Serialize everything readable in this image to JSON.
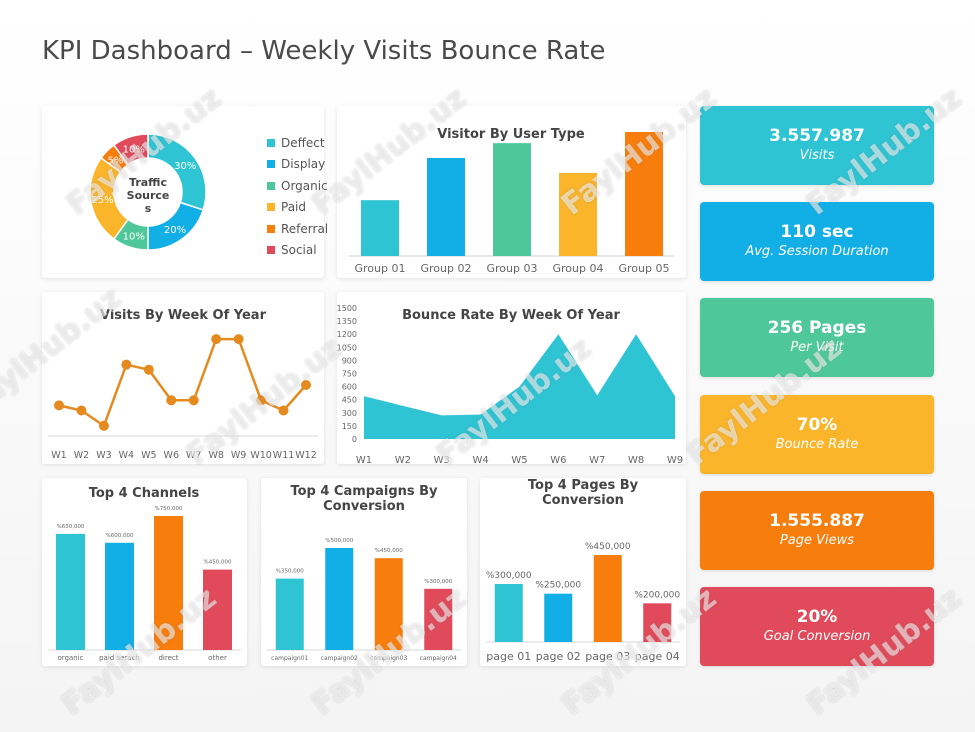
{
  "page": {
    "title": "KPI Dashboard – Weekly Visits Bounce Rate"
  },
  "watermark": "FaylHub.uz",
  "kpis": [
    {
      "value": "3.557.987",
      "label": "Visits",
      "color": "#2ec4d3"
    },
    {
      "value": "110 sec",
      "label": "Avg. Session Duration",
      "color": "#12aee6"
    },
    {
      "value": "256 Pages",
      "label": "Per Visit",
      "color": "#4ec89a"
    },
    {
      "value": "70%",
      "label": "Bounce Rate",
      "color": "#fbb52a"
    },
    {
      "value": "1.555.887",
      "label": "Page Views",
      "color": "#f77d0c"
    },
    {
      "value": "20%",
      "label": "Goal Conversion",
      "color": "#e04a5a"
    }
  ],
  "chart_data": [
    {
      "id": "traffic",
      "type": "pie",
      "title": "Traffic Sources",
      "categories": [
        "Deffect",
        "Display",
        "Organic",
        "Paid",
        "Referral",
        "Social"
      ],
      "values": [
        30,
        20,
        10,
        25,
        5,
        10
      ],
      "labels": [
        "30%",
        "20%",
        "10%",
        "25%",
        "5%",
        "10%"
      ],
      "colors": [
        "#2ec4d3",
        "#12aee6",
        "#4ec89a",
        "#fbb52a",
        "#f77d0c",
        "#e04a5a"
      ]
    },
    {
      "id": "visitor",
      "type": "bar",
      "title": "Visitor By User Type",
      "categories": [
        "Group 01",
        "Group 02",
        "Group 03",
        "Group 04",
        "Group 05"
      ],
      "values": [
        45,
        79,
        91,
        67,
        100
      ],
      "ylim": [
        0,
        100
      ],
      "colors": [
        "#2ec4d3",
        "#12aee6",
        "#4ec89a",
        "#fbb52a",
        "#f77d0c"
      ]
    },
    {
      "id": "visits_week",
      "type": "line",
      "title": "Visits By Week Of Year",
      "categories": [
        "W1",
        "W2",
        "W3",
        "W4",
        "W5",
        "W6",
        "W7",
        "W8",
        "W9",
        "W10",
        "W11",
        "W12"
      ],
      "values": [
        30,
        25,
        10,
        70,
        65,
        35,
        35,
        95,
        95,
        35,
        25,
        50
      ],
      "ylim": [
        0,
        100
      ],
      "color": "#e58a1f"
    },
    {
      "id": "bounce_week",
      "type": "area",
      "title": "Bounce Rate By Week Of Year",
      "categories": [
        "W1",
        "W2",
        "W3",
        "W4",
        "W5",
        "W6",
        "W7",
        "W8",
        "W9"
      ],
      "values": [
        490,
        380,
        270,
        280,
        600,
        1200,
        500,
        1200,
        490
      ],
      "ylim": [
        0,
        1500
      ],
      "yticks": [
        0,
        150,
        300,
        450,
        600,
        750,
        900,
        1050,
        1200,
        1350,
        1500
      ],
      "color": "#2ec4d3"
    },
    {
      "id": "channels",
      "type": "bar",
      "title": "Top 4 Channels",
      "categories": [
        "organic",
        "paid serach",
        "direct",
        "other"
      ],
      "values": [
        650000,
        600000,
        750000,
        450000
      ],
      "labels": [
        "%650,000",
        "%600,000",
        "%750,000",
        "%450,000"
      ],
      "ylim": [
        0,
        750000
      ],
      "colors": [
        "#2ec4d3",
        "#12aee6",
        "#f77d0c",
        "#e04a5a"
      ]
    },
    {
      "id": "campaigns",
      "type": "bar",
      "title": "Top 4 Campaigns By Conversion",
      "categories": [
        "campaign01",
        "campaign02",
        "campaign03",
        "campaign04"
      ],
      "values": [
        350000,
        500000,
        450000,
        300000
      ],
      "labels": [
        "%350,000",
        "%500,000",
        "%450,000",
        "%300,000"
      ],
      "ylim": [
        0,
        500000
      ],
      "colors": [
        "#2ec4d3",
        "#12aee6",
        "#f77d0c",
        "#e04a5a"
      ]
    },
    {
      "id": "pages",
      "type": "bar",
      "title": "Top 4 Pages By Conversion",
      "categories": [
        "page 01",
        "page 02",
        "page 03",
        "page 04"
      ],
      "values": [
        300000,
        250000,
        450000,
        200000
      ],
      "labels": [
        "%300,000",
        "%250,000",
        "%450,000",
        "%200,000"
      ],
      "ylim": [
        0,
        450000
      ],
      "colors": [
        "#2ec4d3",
        "#12aee6",
        "#f77d0c",
        "#e04a5a"
      ]
    }
  ]
}
